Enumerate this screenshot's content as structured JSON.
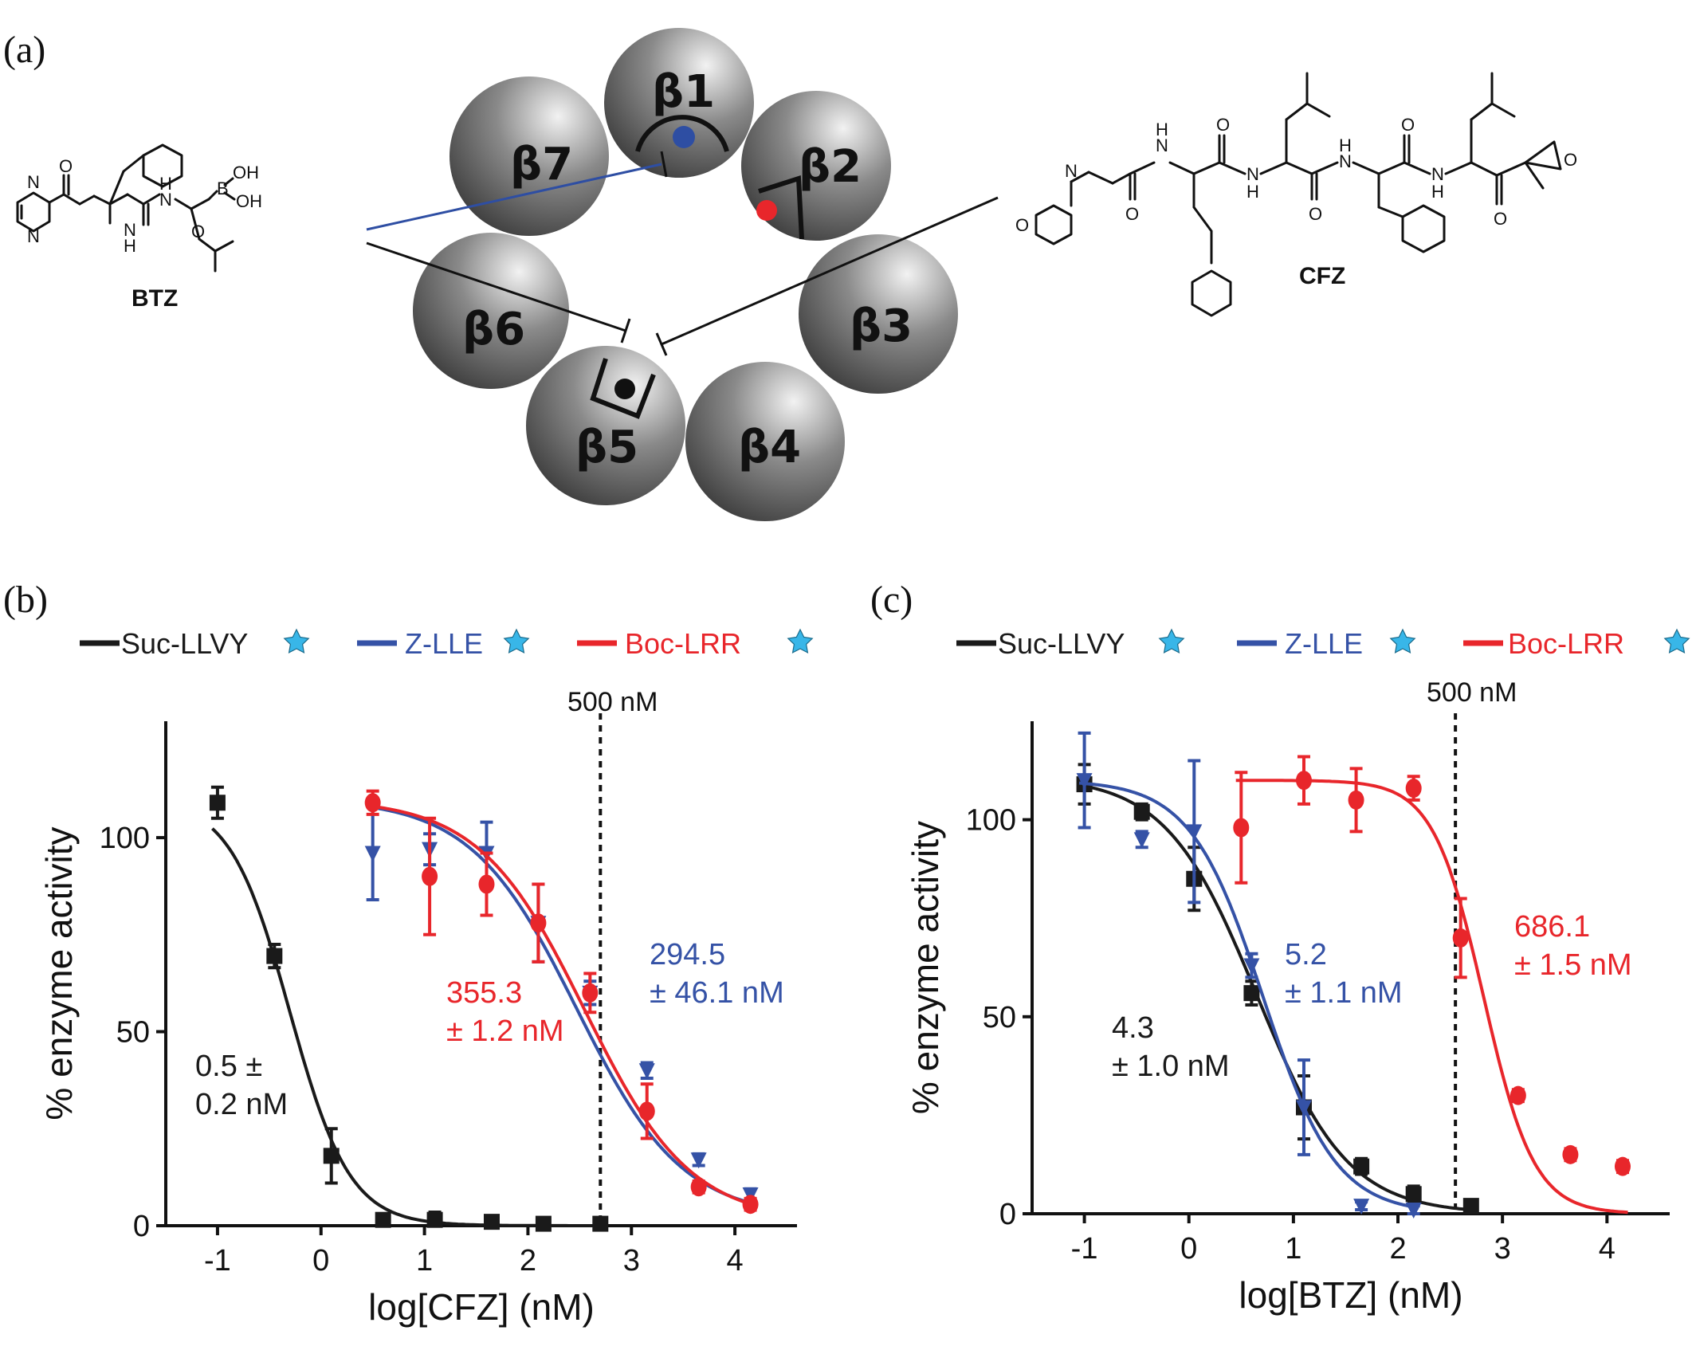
{
  "panel_labels": {
    "a": "(a)",
    "b": "(b)",
    "c": "(c)"
  },
  "schematic": {
    "subunits": [
      "β1",
      "β2",
      "β3",
      "β4",
      "β5",
      "β6",
      "β7"
    ],
    "btz_label": "BTZ",
    "cfz_label": "CFZ",
    "atoms": {
      "N": "N",
      "O": "O",
      "H": "H",
      "B": "B",
      "OH": "OH"
    },
    "site_colors": {
      "beta1": "#2e4ea3",
      "beta2": "#e8262b",
      "beta5": "#111111"
    }
  },
  "series_colors": {
    "Suc-LLVY": "#1a1a1a",
    "Z-LLE": "#3552a6",
    "Boc-LRR": "#e8262b",
    "star": "#38b6e8"
  },
  "chart_data": [
    {
      "id": "b",
      "type": "scatter",
      "xlabel": "log[CFZ] (nM)",
      "ylabel": "% enzyme activity",
      "xlim": [
        -1.5,
        4.6
      ],
      "ylim": [
        0,
        130
      ],
      "xticks": [
        -1,
        0,
        1,
        2,
        3,
        4
      ],
      "xtick_labels": [
        "-1",
        "0",
        "1",
        "2",
        "3",
        "4"
      ],
      "yticks": [
        0,
        50,
        100
      ],
      "ytick_labels": [
        "0",
        "50",
        "100"
      ],
      "vline": {
        "x": 2.7,
        "label": "500 nM"
      },
      "legend": [
        "Suc-LLVY",
        "Z-LLE",
        "Boc-LRR"
      ],
      "series": [
        {
          "name": "Suc-LLVY",
          "color": "#1a1a1a",
          "marker": "square",
          "x": [
            -1.0,
            -0.45,
            0.1,
            0.6,
            1.1,
            1.65,
            2.15,
            2.7
          ],
          "y": [
            109,
            69.5,
            18,
            1.5,
            1.5,
            1,
            0.5,
            0.5
          ],
          "err": [
            4,
            3,
            7,
            1.5,
            2,
            1.5,
            1,
            1
          ],
          "fit": {
            "top": 110,
            "bottom": 0,
            "logIC50": -0.3,
            "hill": -1.5
          }
        },
        {
          "name": "Z-LLE",
          "color": "#3552a6",
          "marker": "triangle",
          "x": [
            0.5,
            1.05,
            1.6,
            2.1,
            2.6,
            3.15,
            3.65,
            4.15
          ],
          "y": [
            96,
            97,
            96,
            78,
            60,
            40,
            17,
            8
          ],
          "err": [
            12,
            4,
            8,
            10,
            3,
            2,
            1.5,
            1.5
          ],
          "fit": {
            "top": 110,
            "bottom": 2,
            "logIC50": 2.47,
            "hill": -0.85
          }
        },
        {
          "name": "Boc-LRR",
          "color": "#e8262b",
          "marker": "circle",
          "x": [
            0.5,
            1.05,
            1.6,
            2.1,
            2.6,
            3.15,
            3.65,
            4.15
          ],
          "y": [
            109,
            90,
            88,
            78,
            60,
            29.5,
            10,
            5.5
          ],
          "err": [
            3,
            15,
            8,
            10,
            5,
            7,
            1.5,
            1.5
          ],
          "fit": {
            "top": 110,
            "bottom": 1,
            "logIC50": 2.55,
            "hill": -0.85
          }
        }
      ],
      "annotations": [
        {
          "series": "Suc-LLVY",
          "lines": [
            "0.5 ±",
            "0.2 nM"
          ]
        },
        {
          "series": "Boc-LRR",
          "lines": [
            "355.3",
            "± 1.2 nM"
          ]
        },
        {
          "series": "Z-LLE",
          "lines": [
            "294.5",
            "± 46.1 nM"
          ]
        }
      ]
    },
    {
      "id": "c",
      "type": "scatter",
      "xlabel": "log[BTZ] (nM)",
      "ylabel": "% enzyme activity",
      "xlim": [
        -1.5,
        4.6
      ],
      "ylim": [
        0,
        125
      ],
      "xticks": [
        -1,
        0,
        1,
        2,
        3,
        4
      ],
      "xtick_labels": [
        "-1",
        "0",
        "1",
        "2",
        "3",
        "4"
      ],
      "yticks": [
        0,
        50,
        100
      ],
      "ytick_labels": [
        "0",
        "50",
        "100"
      ],
      "vline": {
        "x": 2.55,
        "label": "500 nM"
      },
      "legend": [
        "Suc-LLVY",
        "Z-LLE",
        "Boc-LRR"
      ],
      "series": [
        {
          "name": "Suc-LLVY",
          "color": "#1a1a1a",
          "marker": "square",
          "x": [
            -1.0,
            -0.45,
            0.05,
            0.6,
            1.1,
            1.65,
            2.15,
            2.7
          ],
          "y": [
            109,
            102,
            85,
            56,
            27,
            12,
            5,
            2
          ],
          "err": [
            5,
            2,
            8,
            3,
            8,
            2,
            2,
            1.5
          ],
          "fit": {
            "top": 111,
            "bottom": 0,
            "logIC50": 0.65,
            "hill": -1.0
          }
        },
        {
          "name": "Z-LLE",
          "color": "#3552a6",
          "marker": "triangle",
          "x": [
            -1.0,
            -0.45,
            0.05,
            0.6,
            1.1,
            1.65,
            2.15
          ],
          "y": [
            110,
            95,
            97,
            63,
            27,
            2,
            1
          ],
          "err": [
            12,
            2,
            18,
            3,
            12,
            1,
            1
          ],
          "fit": {
            "top": 110,
            "bottom": 0,
            "logIC50": 0.71,
            "hill": -1.25
          }
        },
        {
          "name": "Boc-LRR",
          "color": "#e8262b",
          "marker": "circle",
          "x": [
            0.5,
            1.1,
            1.6,
            2.15,
            2.6,
            3.15,
            3.65,
            4.15
          ],
          "y": [
            98,
            110,
            105,
            108,
            70,
            30,
            15,
            12
          ],
          "err": [
            14,
            6,
            8,
            3,
            10,
            1.5,
            1.5,
            1.5
          ],
          "fit": {
            "top": 110,
            "bottom": 0,
            "logIC50": 2.82,
            "hill": -1.8
          }
        }
      ],
      "annotations": [
        {
          "series": "Suc-LLVY",
          "lines": [
            "4.3",
            "± 1.0 nM"
          ]
        },
        {
          "series": "Z-LLE",
          "lines": [
            "5.2",
            "± 1.1 nM"
          ]
        },
        {
          "series": "Boc-LRR",
          "lines": [
            "686.1",
            "± 1.5 nM"
          ]
        }
      ]
    }
  ]
}
